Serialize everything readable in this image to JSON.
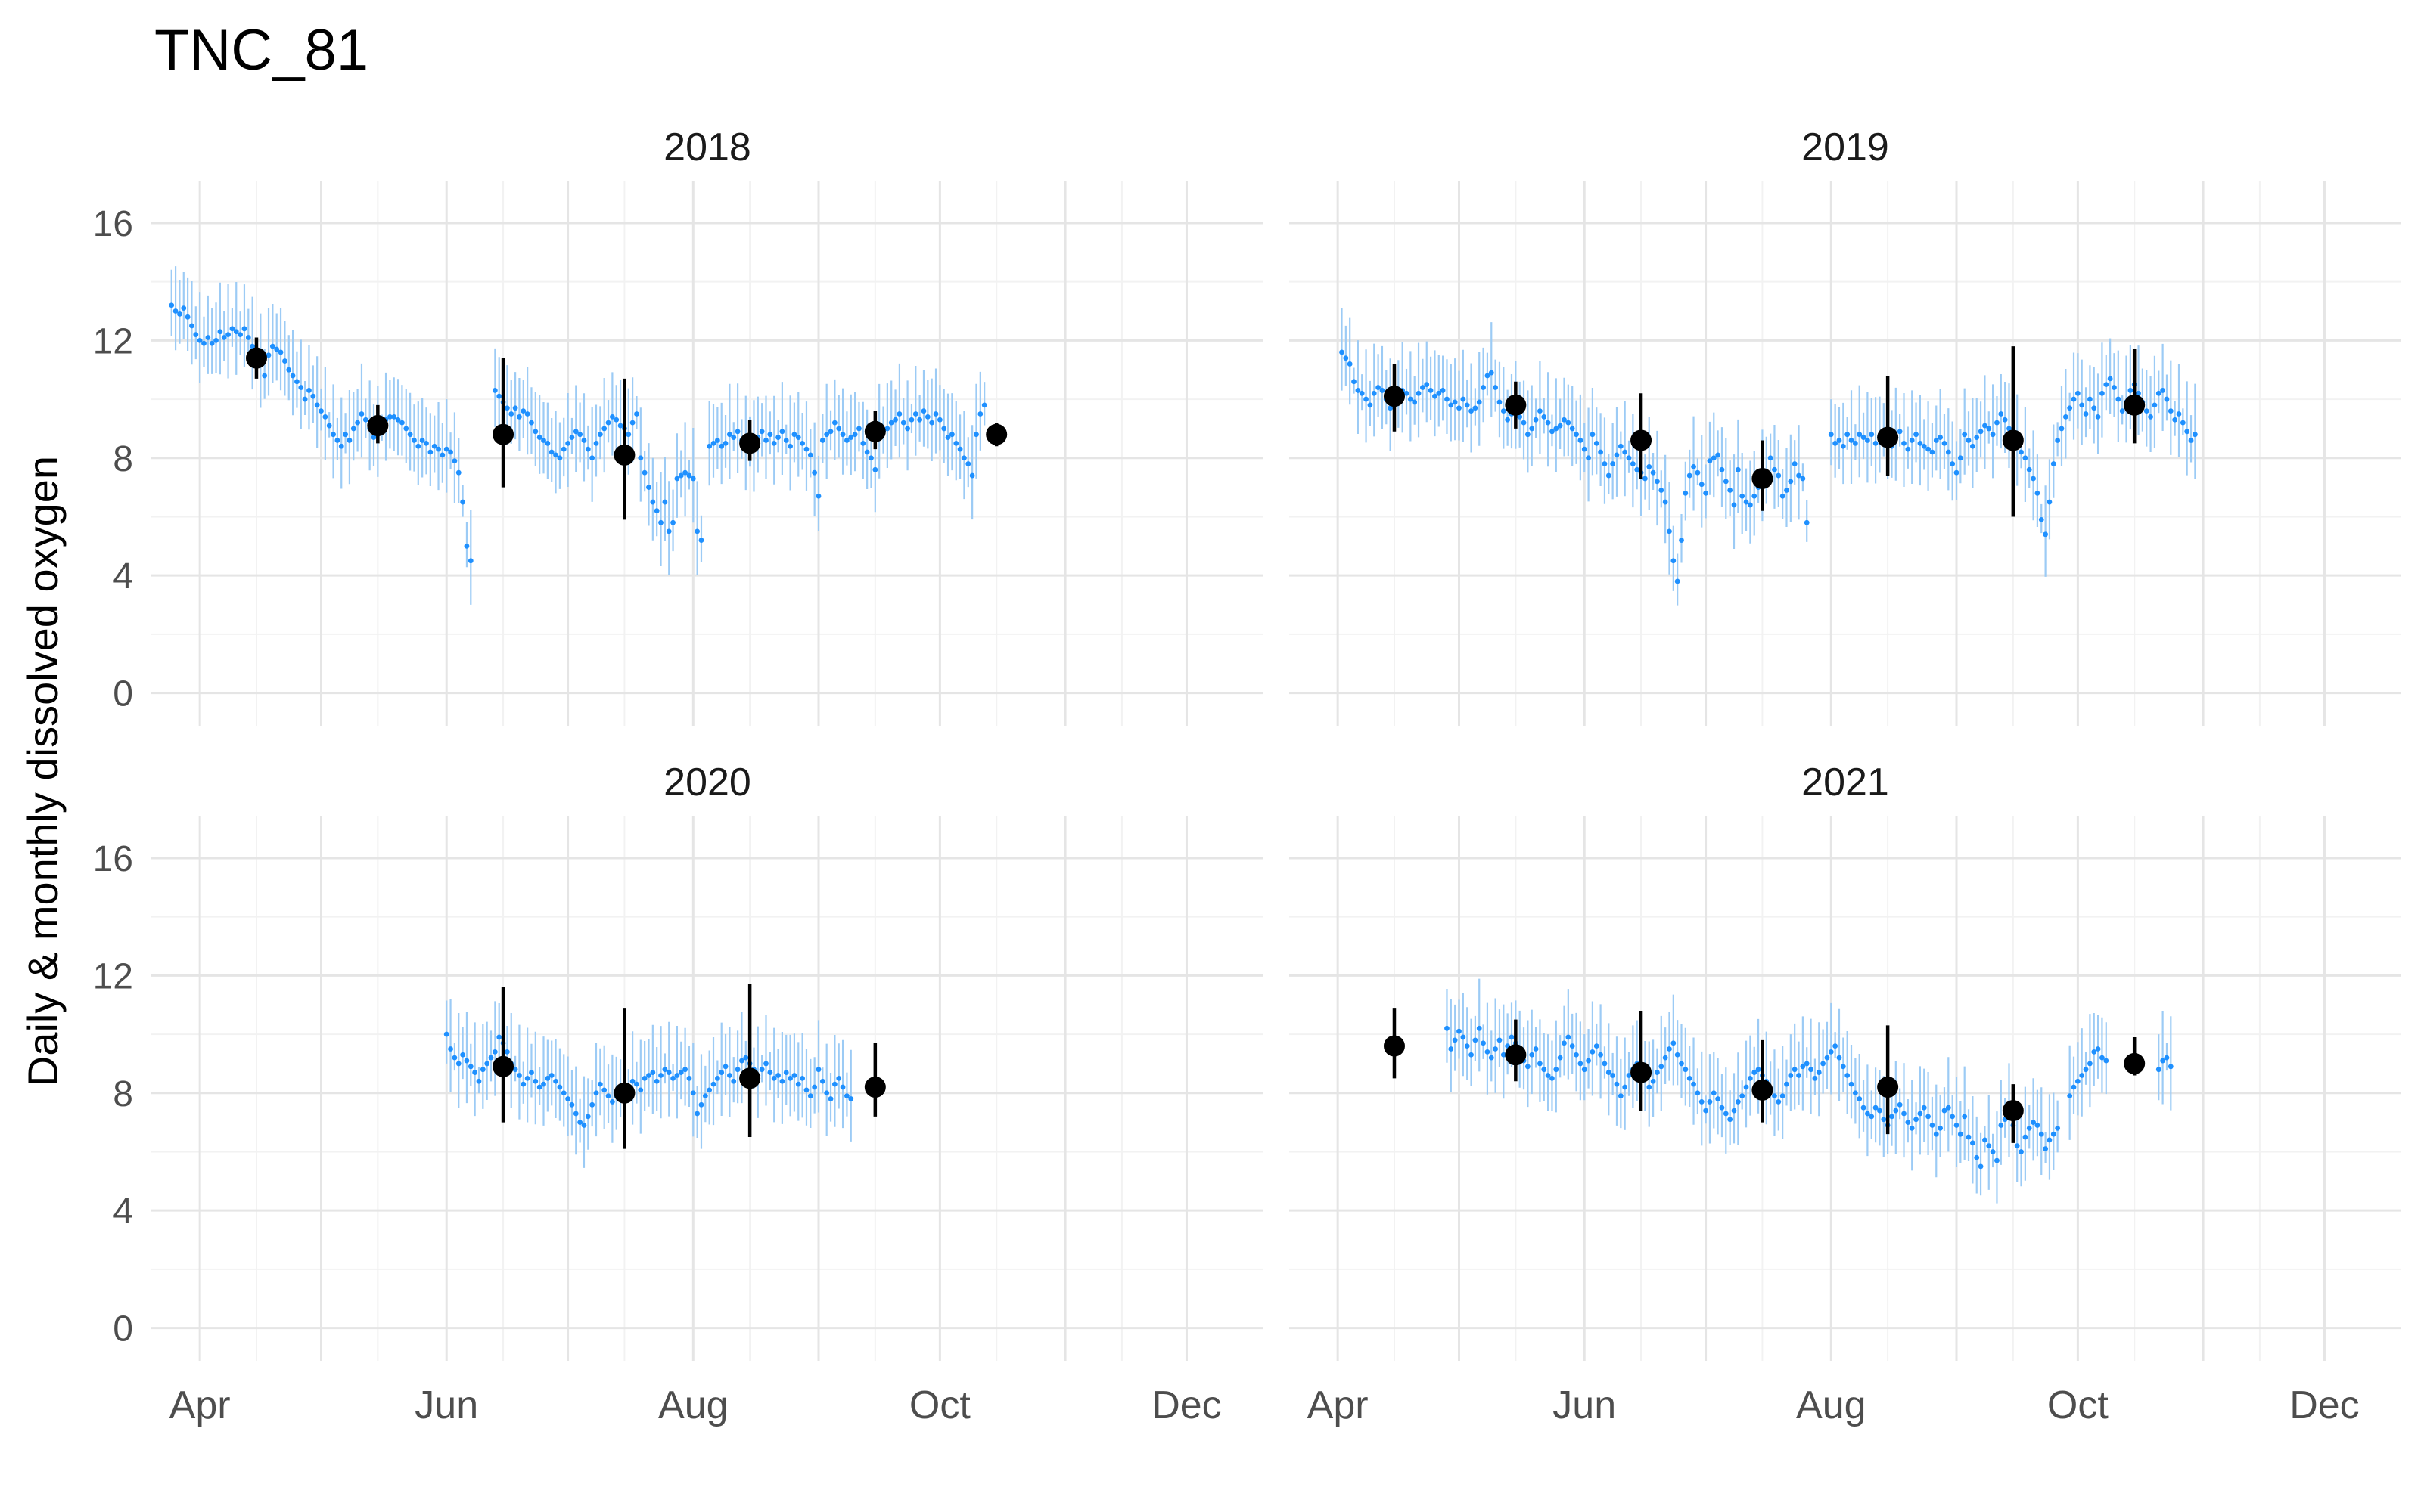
{
  "page_title": "TNC_81",
  "colors": {
    "daily": "#1E90FF",
    "daily_range": "#9CCBF5",
    "monthly": "#000000",
    "grid_major": "#E5E5E5",
    "grid_minor": "#F2F2F2",
    "text": "#4D4D4D"
  },
  "chart_data": {
    "type": "scatter",
    "title": "TNC_81",
    "xlabel": "",
    "ylabel": "Daily & monthly dissolved oxygen",
    "ylim": [
      -0.5,
      17
    ],
    "y_ticks": [
      0,
      4,
      8,
      12,
      16
    ],
    "x_tick_labels": [
      "Apr",
      "Jun",
      "Aug",
      "Oct",
      "Dec"
    ],
    "grid": true,
    "legend": "none",
    "panels": [
      {
        "label": "2018",
        "daily_segments": [
          {
            "start": "2018-03-25",
            "end": "2018-06-07",
            "values": [
              13.2,
              13.0,
              12.9,
              13.1,
              12.8,
              12.5,
              12.2,
              12.0,
              11.9,
              12.1,
              11.9,
              12.0,
              12.3,
              12.1,
              12.2,
              12.4,
              12.3,
              12.2,
              12.4,
              12.1,
              11.8,
              11.5,
              11.2,
              10.8,
              11.5,
              11.8,
              11.7,
              11.6,
              11.3,
              11.0,
              10.8,
              10.6,
              10.4,
              10.0,
              10.3,
              10.1,
              9.8,
              9.6,
              9.4,
              9.1,
              8.8,
              8.6,
              8.4,
              8.8,
              8.6,
              9.0,
              9.2,
              9.5,
              9.3,
              9.0,
              8.7,
              8.8,
              9.0,
              9.3,
              9.4,
              9.4,
              9.3,
              9.2,
              9.0,
              8.8,
              8.6,
              8.4,
              8.6,
              8.5,
              8.2,
              8.4,
              8.3,
              8.1,
              8.3,
              8.2,
              7.9,
              7.5,
              6.5,
              5.0,
              4.5
            ]
          },
          {
            "start": "2018-06-13",
            "end": "2018-07-18",
            "values": [
              10.3,
              10.1,
              9.9,
              9.7,
              9.5,
              9.7,
              9.4,
              9.6,
              9.5,
              9.2,
              8.9,
              8.7,
              8.6,
              8.5,
              8.2,
              8.1,
              8.0,
              8.3,
              8.5,
              8.7,
              8.9,
              8.8,
              8.6,
              8.3,
              8.0,
              8.5,
              8.8,
              9.0,
              9.2,
              9.4,
              9.3,
              9.1,
              9.0,
              8.8,
              9.2,
              9.5
            ]
          },
          {
            "start": "2018-07-19",
            "end": "2018-07-27",
            "values": [
              8.0,
              7.5,
              7.0,
              6.5,
              6.2,
              5.8,
              6.5,
              5.5,
              5.8
            ]
          },
          {
            "start": "2018-07-28",
            "end": "2018-08-03",
            "values": [
              7.3,
              7.4,
              7.5,
              7.4,
              7.3,
              5.5,
              5.2
            ]
          },
          {
            "start": "2018-08-05",
            "end": "2018-10-12",
            "values": [
              8.4,
              8.5,
              8.6,
              8.4,
              8.5,
              8.8,
              8.7,
              8.9,
              8.6,
              8.4,
              8.5,
              8.3,
              8.7,
              8.9,
              8.6,
              8.8,
              8.5,
              8.7,
              8.9,
              8.6,
              8.4,
              8.8,
              8.7,
              8.5,
              8.3,
              8.1,
              7.5,
              6.7,
              8.6,
              8.8,
              8.9,
              9.2,
              9.0,
              8.8,
              8.6,
              8.7,
              8.8,
              9.0,
              8.5,
              8.2,
              8.0,
              7.6,
              8.8,
              8.9,
              9.0,
              9.2,
              9.3,
              9.5,
              9.2,
              9.0,
              9.3,
              9.5,
              9.3,
              9.6,
              9.4,
              9.2,
              9.5,
              9.3,
              9.0,
              8.7,
              8.8,
              8.5,
              8.3,
              8.0,
              7.8,
              7.4,
              8.8,
              9.5,
              9.8
            ]
          }
        ],
        "monthly": [
          {
            "date": "2018-04-15",
            "mean": 11.4,
            "low": 10.7,
            "high": 12.1
          },
          {
            "date": "2018-05-15",
            "mean": 9.1,
            "low": 8.5,
            "high": 9.8
          },
          {
            "date": "2018-06-15",
            "mean": 8.8,
            "low": 7.0,
            "high": 11.4
          },
          {
            "date": "2018-07-15",
            "mean": 8.1,
            "low": 5.9,
            "high": 10.7
          },
          {
            "date": "2018-08-15",
            "mean": 8.5,
            "low": 7.9,
            "high": 9.3
          },
          {
            "date": "2018-09-15",
            "mean": 8.9,
            "low": 8.3,
            "high": 9.6
          },
          {
            "date": "2018-10-15",
            "mean": 8.8,
            "low": 8.4,
            "high": 9.2
          }
        ]
      },
      {
        "label": "2019",
        "daily_segments": [
          {
            "start": "2019-04-02",
            "end": "2019-07-27",
            "values": [
              11.6,
              11.4,
              11.2,
              10.6,
              10.3,
              10.2,
              10.0,
              9.8,
              10.2,
              10.4,
              10.3,
              10.0,
              9.7,
              9.8,
              10.1,
              10.3,
              10.2,
              10.0,
              9.9,
              10.2,
              10.4,
              10.5,
              10.3,
              10.1,
              10.2,
              10.3,
              10.0,
              9.8,
              9.9,
              9.7,
              10.0,
              9.8,
              9.6,
              9.7,
              9.9,
              10.4,
              10.8,
              10.9,
              10.4,
              9.9,
              9.6,
              9.3,
              9.5,
              9.7,
              9.4,
              9.2,
              8.8,
              9.0,
              9.3,
              9.6,
              9.4,
              9.2,
              8.9,
              9.0,
              9.1,
              9.3,
              9.2,
              9.0,
              8.8,
              8.6,
              8.3,
              8.0,
              8.8,
              8.5,
              8.2,
              7.8,
              7.4,
              7.8,
              8.1,
              8.4,
              8.2,
              8.0,
              7.8,
              7.6,
              7.5,
              7.3,
              7.7,
              7.5,
              7.2,
              6.9,
              6.5,
              5.5,
              4.5,
              3.8,
              5.2,
              6.8,
              7.4,
              7.7,
              7.5,
              7.1,
              6.8,
              7.9,
              8.0,
              8.1,
              7.6,
              7.2,
              6.9,
              6.4,
              7.6,
              6.7,
              6.5,
              6.4,
              6.7,
              7.0,
              7.3,
              7.5,
              8.0,
              7.6,
              7.4,
              6.7,
              6.9,
              7.2,
              7.8,
              7.4,
              7.3,
              5.8
            ]
          },
          {
            "start": "2019-08-01",
            "end": "2019-10-30",
            "values": [
              8.8,
              8.5,
              8.6,
              8.4,
              8.8,
              8.6,
              8.5,
              8.8,
              8.7,
              8.6,
              8.8,
              8.5,
              8.7,
              8.9,
              8.6,
              8.4,
              8.7,
              8.9,
              8.5,
              8.3,
              8.6,
              8.8,
              8.5,
              8.4,
              8.3,
              8.2,
              8.6,
              8.7,
              8.5,
              8.2,
              7.8,
              7.5,
              8.0,
              8.8,
              8.6,
              8.4,
              8.7,
              8.9,
              9.1,
              9.0,
              8.8,
              9.2,
              9.5,
              9.3,
              9.0,
              8.7,
              8.5,
              8.2,
              8.0,
              7.6,
              7.3,
              6.8,
              5.9,
              5.4,
              6.5,
              7.8,
              8.6,
              9.0,
              9.4,
              9.7,
              10.0,
              10.2,
              9.8,
              9.5,
              10.0,
              9.7,
              9.4,
              10.2,
              10.5,
              10.7,
              10.4,
              10.0,
              9.6,
              9.9,
              10.3,
              10.5,
              10.2,
              9.9,
              9.6,
              9.4,
              9.8,
              10.2,
              10.3,
              10.0,
              9.6,
              9.3,
              9.5,
              9.2,
              8.9,
              8.6,
              8.8
            ]
          }
        ],
        "monthly": [
          {
            "date": "2019-04-15",
            "mean": 10.1,
            "low": 8.9,
            "high": 11.2
          },
          {
            "date": "2019-05-15",
            "mean": 9.8,
            "low": 9.0,
            "high": 10.6
          },
          {
            "date": "2019-06-15",
            "mean": 8.6,
            "low": 7.3,
            "high": 10.2
          },
          {
            "date": "2019-07-15",
            "mean": 7.3,
            "low": 6.2,
            "high": 8.6
          },
          {
            "date": "2019-08-15",
            "mean": 8.7,
            "low": 7.4,
            "high": 10.8
          },
          {
            "date": "2019-09-15",
            "mean": 8.6,
            "low": 6.0,
            "high": 11.8
          },
          {
            "date": "2019-10-15",
            "mean": 9.8,
            "low": 8.5,
            "high": 11.7
          }
        ]
      },
      {
        "label": "2020",
        "daily_segments": [
          {
            "start": "2020-06-01",
            "end": "2020-09-10",
            "values": [
              10.0,
              9.5,
              9.2,
              9.0,
              9.3,
              9.1,
              8.9,
              8.7,
              8.4,
              8.8,
              9.0,
              9.2,
              9.4,
              9.9,
              9.7,
              9.4,
              9.0,
              8.8,
              8.6,
              8.3,
              8.5,
              8.7,
              8.4,
              8.2,
              8.3,
              8.5,
              8.6,
              8.4,
              8.2,
              8.0,
              7.8,
              7.6,
              7.3,
              7.0,
              6.9,
              7.2,
              7.6,
              8.0,
              8.3,
              8.1,
              7.9,
              7.7,
              7.9,
              8.1,
              8.0,
              8.2,
              8.4,
              8.3,
              8.1,
              8.5,
              8.6,
              8.7,
              8.4,
              8.6,
              8.8,
              8.7,
              8.5,
              8.6,
              8.7,
              8.8,
              8.5,
              8.0,
              7.3,
              7.6,
              7.9,
              8.1,
              8.3,
              8.5,
              8.7,
              8.9,
              8.6,
              8.4,
              8.8,
              9.1,
              9.2,
              9.0,
              8.8,
              8.6,
              8.8,
              9.0,
              8.7,
              8.5,
              8.6,
              8.4,
              8.7,
              8.5,
              8.6,
              8.3,
              8.5,
              8.1,
              7.9,
              8.2,
              8.8,
              8.4,
              8.0,
              7.8,
              8.3,
              8.5,
              8.2,
              7.9,
              7.8
            ]
          }
        ],
        "monthly": [
          {
            "date": "2020-06-15",
            "mean": 8.9,
            "low": 7.0,
            "high": 11.6
          },
          {
            "date": "2020-07-15",
            "mean": 8.0,
            "low": 6.1,
            "high": 10.9
          },
          {
            "date": "2020-08-15",
            "mean": 8.5,
            "low": 6.5,
            "high": 11.7
          },
          {
            "date": "2020-09-15",
            "mean": 8.2,
            "low": 7.2,
            "high": 9.7
          }
        ]
      },
      {
        "label": "2021",
        "daily_segments": [
          {
            "start": "2021-04-28",
            "end": "2021-09-28",
            "values": [
              10.2,
              9.5,
              9.8,
              10.1,
              9.9,
              9.6,
              9.3,
              9.8,
              10.2,
              9.7,
              9.4,
              9.2,
              9.5,
              9.8,
              9.3,
              9.6,
              9.9,
              9.7,
              9.4,
              9.1,
              8.9,
              9.3,
              9.5,
              9.0,
              8.8,
              8.6,
              8.5,
              8.8,
              9.2,
              9.7,
              9.9,
              9.6,
              9.3,
              9.0,
              8.8,
              9.1,
              9.4,
              9.6,
              9.3,
              9.0,
              8.7,
              8.6,
              8.3,
              7.9,
              8.2,
              8.6,
              8.8,
              9.0,
              8.8,
              8.5,
              8.2,
              8.4,
              8.7,
              8.9,
              9.2,
              9.5,
              9.7,
              9.3,
              9.0,
              8.8,
              8.5,
              8.3,
              8.0,
              7.7,
              7.4,
              7.7,
              8.0,
              7.8,
              7.5,
              7.3,
              7.1,
              7.4,
              7.7,
              7.9,
              8.2,
              8.5,
              8.7,
              8.8,
              8.6,
              8.4,
              8.1,
              7.9,
              7.7,
              7.9,
              8.3,
              8.6,
              8.8,
              8.6,
              8.9,
              9.0,
              8.8,
              8.5,
              8.7,
              9.0,
              9.2,
              9.4,
              9.6,
              9.2,
              8.9,
              8.6,
              8.3,
              8.0,
              7.8,
              7.5,
              7.3,
              7.2,
              7.5,
              7.4,
              7.1,
              6.9,
              7.2,
              7.4,
              7.6,
              7.3,
              7.0,
              6.8,
              7.1,
              7.3,
              7.5,
              7.2,
              6.9,
              6.6,
              6.8,
              7.4,
              7.5,
              7.2,
              6.9,
              6.6,
              7.2,
              6.5,
              6.3,
              5.8,
              5.5,
              6.4,
              6.2,
              6.0,
              5.7,
              6.9,
              7.1,
              7.3,
              6.9,
              6.2,
              6.0,
              6.5,
              6.8,
              7.0,
              6.9,
              6.6,
              6.1,
              6.4,
              6.6,
              6.8
            ]
          },
          {
            "start": "2021-09-29",
            "end": "2021-10-08",
            "values": [
              7.9,
              8.2,
              8.4,
              8.6,
              8.8,
              9.0,
              9.4,
              9.5,
              9.2,
              9.1
            ]
          },
          {
            "start": "2021-10-21",
            "end": "2021-10-24",
            "values": [
              8.8,
              9.1,
              9.2,
              8.9
            ]
          }
        ],
        "monthly": [
          {
            "date": "2021-04-15",
            "mean": 9.6,
            "low": 8.5,
            "high": 10.9
          },
          {
            "date": "2021-05-15",
            "mean": 9.3,
            "low": 8.4,
            "high": 10.5
          },
          {
            "date": "2021-06-15",
            "mean": 8.7,
            "low": 7.4,
            "high": 10.8
          },
          {
            "date": "2021-07-15",
            "mean": 8.1,
            "low": 7.0,
            "high": 9.8
          },
          {
            "date": "2021-08-15",
            "mean": 8.2,
            "low": 6.6,
            "high": 10.3
          },
          {
            "date": "2021-09-15",
            "mean": 7.4,
            "low": 6.3,
            "high": 8.3
          },
          {
            "date": "2021-10-15",
            "mean": 9.0,
            "low": 8.6,
            "high": 9.9
          }
        ]
      }
    ]
  }
}
